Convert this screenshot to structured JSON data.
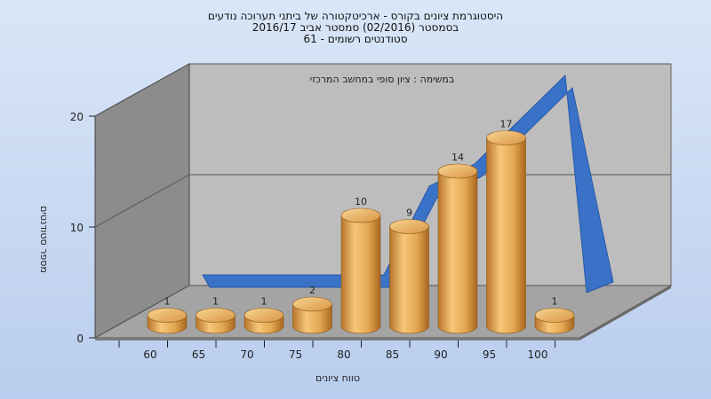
{
  "title_lines": [
    "היסטוגרמת ציונים בקורס - ארכיטקטורה של ביתני תערוכה נודעים",
    "בסמסטר  (02/2016)  סמסטר אביב 2016/17",
    "סטודנטים רשומים - 61"
  ],
  "chart_data": {
    "type": "bar",
    "subtitle": "במשימה : ציון סופי במחשב המרכזי",
    "xlabel": "טווח ציונים",
    "ylabel": "מספר סטודנטים",
    "categories": [
      "60",
      "65",
      "70",
      "75",
      "80",
      "85",
      "90",
      "95",
      "100"
    ],
    "bar_labels": [
      "1",
      "1",
      "1",
      "2",
      "10",
      "9",
      "14",
      "17",
      "1"
    ],
    "values": [
      1,
      1,
      1,
      2,
      10,
      9,
      14,
      17,
      1
    ],
    "x_ticks": [
      "60",
      "65",
      "70",
      "75",
      "80",
      "85",
      "90",
      "95",
      "100"
    ],
    "y_ticks": [
      "0",
      "10",
      "20"
    ],
    "ylim": [
      0,
      20
    ],
    "curve_values": [
      0,
      0,
      0,
      0,
      0,
      8,
      10,
      14,
      18,
      0
    ],
    "colors": {
      "bar": "#e3a650",
      "curve": "#3a72c8",
      "wall": "#8c8c8c",
      "back": "#bdbdbd",
      "floor": "#a4a4a4"
    }
  }
}
